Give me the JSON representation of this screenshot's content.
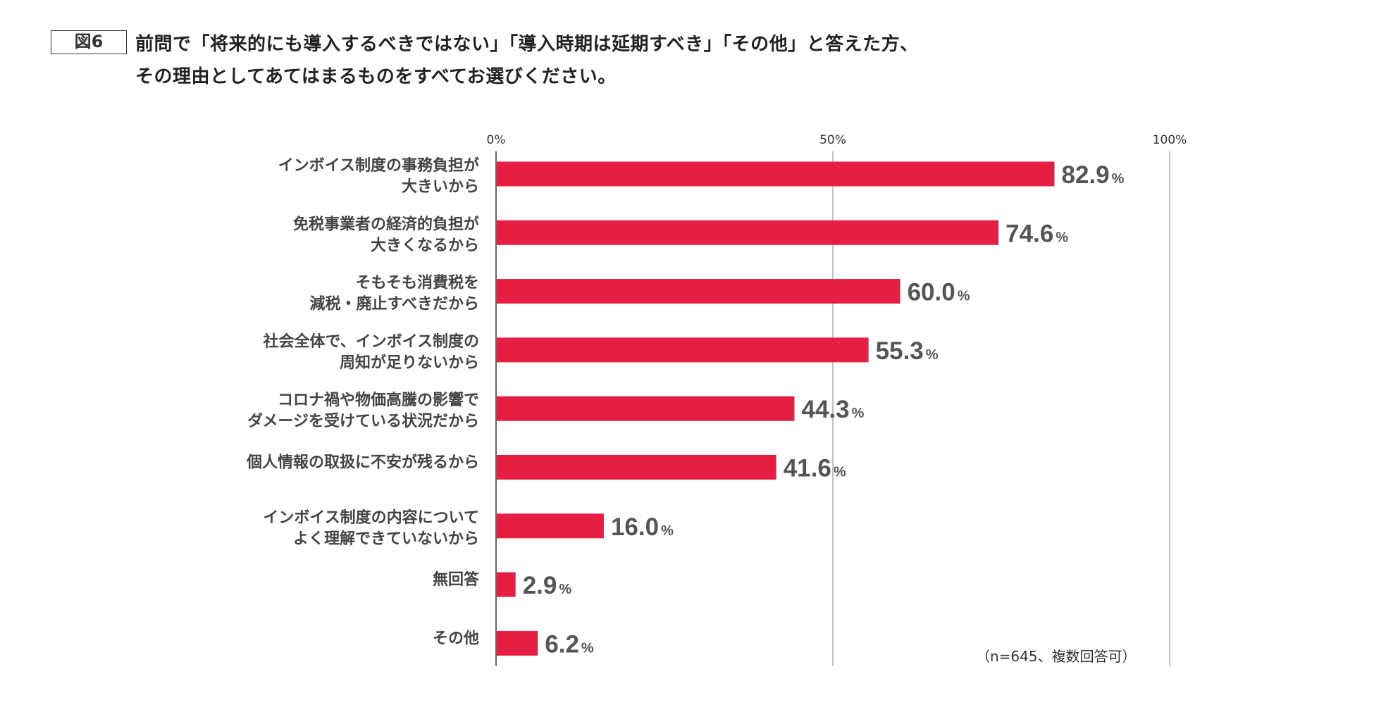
{
  "figure_label": "図6",
  "title_lines": [
    "前問で「将来的にも導入するべきではない」「導入時期は延期すべき」「その他」と答えた方、",
    "その理由としてあてはまるものをすべてお選びください。"
  ],
  "note": "（n=645、複数回答可）",
  "colors": {
    "bar": "#e61e43",
    "value_text": "#555555",
    "grid": "#888888"
  },
  "chart_data": {
    "type": "bar",
    "orientation": "horizontal",
    "categories": [
      [
        "インボイス制度の事務負担が",
        "大きいから"
      ],
      [
        "免税事業者の経済的負担が",
        "大きくなるから"
      ],
      [
        "そもそも消費税を",
        "減税・廃止すべきだから"
      ],
      [
        "社会全体で、インボイス制度の",
        "周知が足りないから"
      ],
      [
        "コロナ禍や物価高騰の影響で",
        "ダメージを受けている状況だから"
      ],
      [
        "個人情報の取扱に不安が残るから"
      ],
      [
        "インボイス制度の内容について",
        "よく理解できていないから"
      ],
      [
        "無回答"
      ],
      [
        "その他"
      ]
    ],
    "values": [
      82.9,
      74.6,
      60.0,
      55.3,
      44.3,
      41.6,
      16.0,
      2.9,
      6.2
    ],
    "value_labels": [
      "82.9",
      "74.6",
      "60.0",
      "55.3",
      "44.3",
      "41.6",
      "16.0",
      "2.9",
      "6.2"
    ],
    "value_unit": "%",
    "xlim": [
      0,
      100
    ],
    "xticks": [
      "0%",
      "50%",
      "100%"
    ],
    "xtick_values": [
      0,
      50,
      100
    ],
    "grid": true
  }
}
